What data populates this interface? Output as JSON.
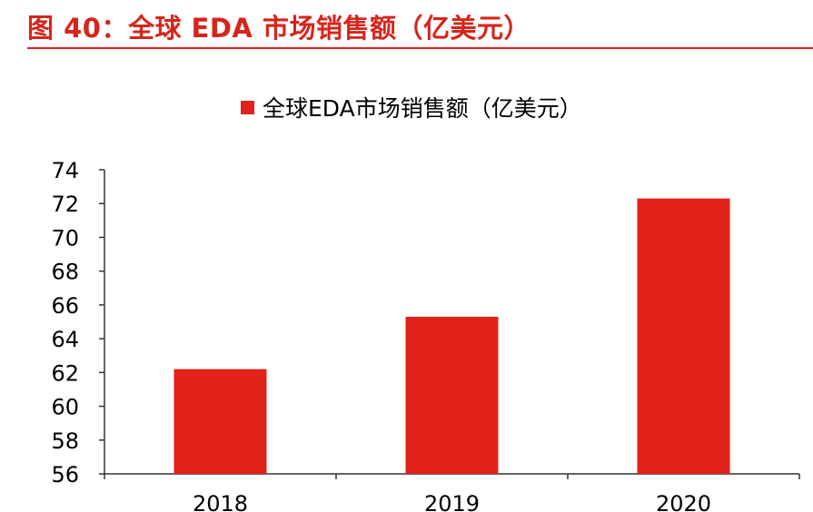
{
  "figure_title": "图 40：全球 EDA 市场销售额（亿美元）",
  "colors": {
    "title": "#d7251b",
    "bar": "#e0221b",
    "axis": "#333333",
    "text": "#000000"
  },
  "chart_data": {
    "type": "bar",
    "categories": [
      "2018",
      "2019",
      "2020"
    ],
    "series": [
      {
        "name": "全球EDA市场销售额（亿美元）",
        "values": [
          62.2,
          65.3,
          72.3
        ]
      }
    ],
    "ylim": [
      56,
      74
    ],
    "yticks": [
      "56",
      "58",
      "60",
      "62",
      "64",
      "66",
      "68",
      "70",
      "72",
      "74"
    ],
    "legend_position": "top-center",
    "grid": false
  }
}
